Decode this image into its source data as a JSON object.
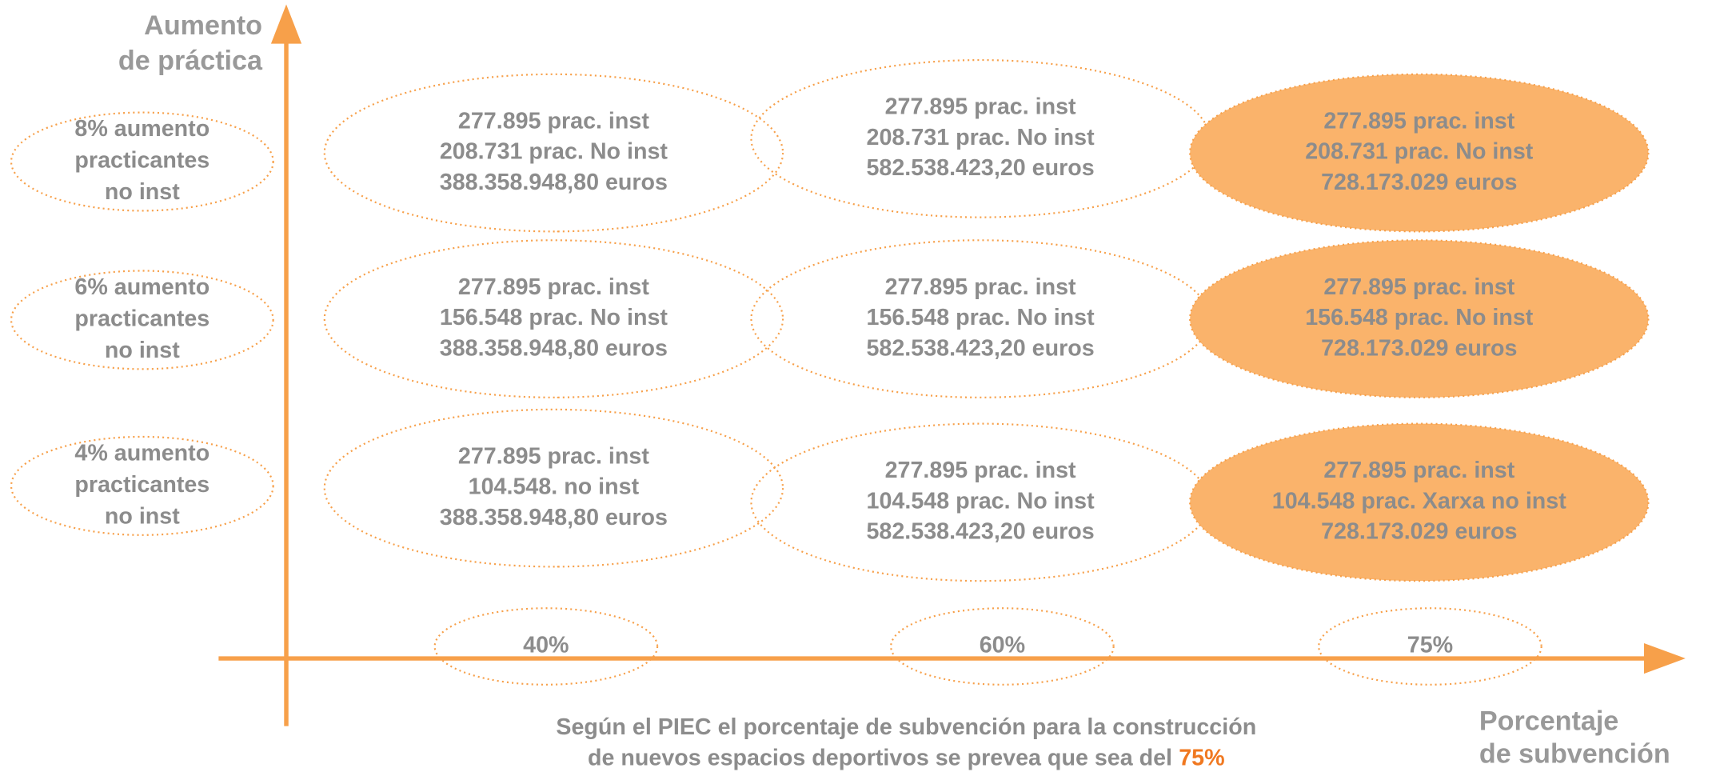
{
  "y_axis_label": [
    "Aumento",
    "de práctica"
  ],
  "x_axis_label": [
    "Porcentaje",
    "de subvención"
  ],
  "rows": [
    {
      "label": [
        "8% aumento",
        "practicantes",
        "no inst"
      ],
      "cells": [
        [
          "277.895 prac. inst",
          "208.731 prac. No inst",
          "388.358.948,80 euros"
        ],
        [
          "277.895 prac. inst",
          "208.731 prac. No inst",
          "582.538.423,20 euros"
        ],
        [
          "277.895 prac. inst",
          "208.731 prac. No inst",
          "728.173.029 euros"
        ]
      ]
    },
    {
      "label": [
        "6% aumento",
        "practicantes",
        "no inst"
      ],
      "cells": [
        [
          "277.895 prac. inst",
          "156.548 prac. No inst",
          "388.358.948,80 euros"
        ],
        [
          "277.895 prac. inst",
          "156.548 prac. No inst",
          "582.538.423,20 euros"
        ],
        [
          "277.895 prac. inst",
          "156.548 prac. No inst",
          "728.173.029 euros"
        ]
      ]
    },
    {
      "label": [
        "4% aumento",
        "practicantes",
        "no inst"
      ],
      "cells": [
        [
          "277.895 prac. inst",
          "104.548. no inst",
          "388.358.948,80 euros"
        ],
        [
          "277.895 prac. inst",
          "104.548 prac. No inst",
          "582.538.423,20 euros"
        ],
        [
          "277.895 prac. inst",
          "104.548 prac. Xarxa no inst",
          "728.173.029 euros"
        ]
      ]
    }
  ],
  "columns": [
    "40%",
    "60%",
    "75%"
  ],
  "note": {
    "lines": [
      "Según el PIEC el porcentaje de subvención para la construcción",
      "de nuevos espacios deportivos se prevea que sea del"
    ],
    "highlight": "75%"
  }
}
